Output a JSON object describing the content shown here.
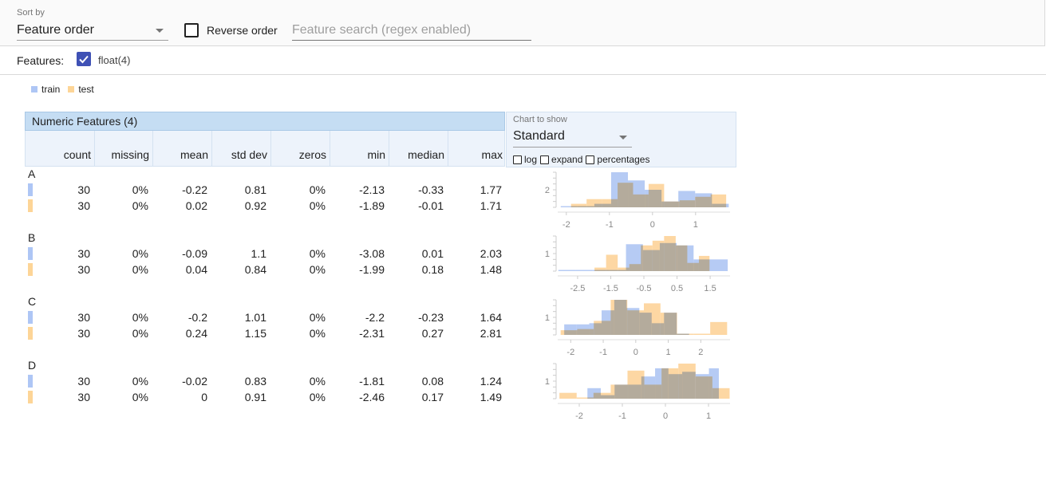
{
  "controls": {
    "sort_label": "Sort by",
    "sort_value": "Feature order",
    "reverse_label": "Reverse order",
    "search_placeholder": "Feature search (regex enabled)"
  },
  "features_filter": {
    "label": "Features:",
    "type": "float(4)",
    "checked": true
  },
  "legend": [
    {
      "name": "train",
      "color": "#aec6f5"
    },
    {
      "name": "test",
      "color": "#fdd597"
    }
  ],
  "colors": {
    "train": "#aec6f5",
    "test": "#fdd597",
    "overlap": "#b5a98a"
  },
  "table": {
    "title": "Numeric Features (4)",
    "columns": [
      "count",
      "missing",
      "mean",
      "std dev",
      "zeros",
      "min",
      "median",
      "max"
    ]
  },
  "chart_panel": {
    "label": "Chart to show",
    "value": "Standard",
    "options": [
      "log",
      "expand",
      "percentages"
    ]
  },
  "features": [
    {
      "name": "A",
      "rows": [
        [
          "30",
          "0%",
          "-0.22",
          "0.81",
          "0%",
          "-2.13",
          "-0.33",
          "1.77"
        ],
        [
          "30",
          "0%",
          "0.02",
          "0.92",
          "0%",
          "-1.89",
          "-0.01",
          "1.71"
        ]
      ],
      "chart_data": {
        "type": "histogram",
        "y_tick_label": "2",
        "x_ticks": [
          -2,
          -1,
          0,
          1
        ],
        "x_range": [
          -2.2,
          1.8
        ],
        "y_max": 3,
        "train_bins": [
          {
            "x0": -2.13,
            "x1": -1.74,
            "y": 0.1
          },
          {
            "x0": -1.74,
            "x1": -1.35,
            "y": 0.1
          },
          {
            "x0": -1.35,
            "x1": -0.96,
            "y": 0.3
          },
          {
            "x0": -0.96,
            "x1": -0.57,
            "y": 3
          },
          {
            "x0": -0.57,
            "x1": -0.18,
            "y": 2.3
          },
          {
            "x0": -0.18,
            "x1": 0.21,
            "y": 1.5
          },
          {
            "x0": 0.21,
            "x1": 0.6,
            "y": 0.5
          },
          {
            "x0": 0.6,
            "x1": 0.99,
            "y": 1.4
          },
          {
            "x0": 0.99,
            "x1": 1.38,
            "y": 1.2
          },
          {
            "x0": 1.38,
            "x1": 1.77,
            "y": 0.3
          }
        ],
        "test_bins": [
          {
            "x0": -1.89,
            "x1": -1.53,
            "y": 0.3
          },
          {
            "x0": -1.53,
            "x1": -1.17,
            "y": 0.7
          },
          {
            "x0": -1.17,
            "x1": -0.81,
            "y": 0.7
          },
          {
            "x0": -0.81,
            "x1": -0.45,
            "y": 2.1
          },
          {
            "x0": -0.45,
            "x1": -0.09,
            "y": 1.1
          },
          {
            "x0": -0.09,
            "x1": 0.27,
            "y": 2.0
          },
          {
            "x0": 0.27,
            "x1": 0.63,
            "y": 0.5
          },
          {
            "x0": 0.63,
            "x1": 0.99,
            "y": 0.6
          },
          {
            "x0": 0.99,
            "x1": 1.35,
            "y": 0.9
          },
          {
            "x0": 1.35,
            "x1": 1.71,
            "y": 1.1
          }
        ]
      }
    },
    {
      "name": "B",
      "rows": [
        [
          "30",
          "0%",
          "-0.09",
          "1.1",
          "0%",
          "-3.08",
          "0.01",
          "2.03"
        ],
        [
          "30",
          "0%",
          "0.04",
          "0.84",
          "0%",
          "-1.99",
          "0.18",
          "1.48"
        ]
      ],
      "chart_data": {
        "type": "histogram",
        "y_tick_label": "1",
        "x_ticks": [
          -2.5,
          -1.5,
          -0.5,
          0.5,
          1.5
        ],
        "x_range": [
          -3.1,
          2.1
        ],
        "y_max": 3,
        "train_bins": [
          {
            "x0": -3.08,
            "x1": -2.57,
            "y": 0.1
          },
          {
            "x0": -2.57,
            "x1": -2.06,
            "y": 0.1
          },
          {
            "x0": -2.06,
            "x1": -1.55,
            "y": 0.1
          },
          {
            "x0": -1.55,
            "x1": -1.04,
            "y": 0.1
          },
          {
            "x0": -1.04,
            "x1": -0.53,
            "y": 2.3
          },
          {
            "x0": -0.53,
            "x1": -0.02,
            "y": 1.8
          },
          {
            "x0": -0.02,
            "x1": 0.49,
            "y": 2.4
          },
          {
            "x0": 0.49,
            "x1": 1.0,
            "y": 2.2
          },
          {
            "x0": 1.0,
            "x1": 1.51,
            "y": 1.0
          },
          {
            "x0": 1.51,
            "x1": 2.03,
            "y": 1.0
          }
        ],
        "test_bins": [
          {
            "x0": -1.99,
            "x1": -1.64,
            "y": 0.3
          },
          {
            "x0": -1.64,
            "x1": -1.29,
            "y": 1.4
          },
          {
            "x0": -1.29,
            "x1": -0.94,
            "y": 0.3
          },
          {
            "x0": -0.94,
            "x1": -0.59,
            "y": 0.6
          },
          {
            "x0": -0.59,
            "x1": -0.24,
            "y": 2.2
          },
          {
            "x0": -0.24,
            "x1": 0.11,
            "y": 2.6
          },
          {
            "x0": 0.11,
            "x1": 0.46,
            "y": 3
          },
          {
            "x0": 0.46,
            "x1": 0.81,
            "y": 2.2
          },
          {
            "x0": 0.81,
            "x1": 1.16,
            "y": 0.7
          },
          {
            "x0": 1.16,
            "x1": 1.48,
            "y": 1.3
          }
        ]
      }
    },
    {
      "name": "C",
      "rows": [
        [
          "30",
          "0%",
          "-0.2",
          "1.01",
          "0%",
          "-2.2",
          "-0.23",
          "1.64"
        ],
        [
          "30",
          "0%",
          "0.24",
          "1.15",
          "0%",
          "-2.31",
          "0.27",
          "2.81"
        ]
      ],
      "chart_data": {
        "type": "histogram",
        "y_tick_label": "1",
        "x_ticks": [
          -2,
          -1,
          0,
          1,
          2
        ],
        "x_range": [
          -2.4,
          2.9
        ],
        "y_max": 3,
        "train_bins": [
          {
            "x0": -2.2,
            "x1": -1.82,
            "y": 0.9
          },
          {
            "x0": -1.82,
            "x1": -1.43,
            "y": 0.9
          },
          {
            "x0": -1.43,
            "x1": -1.05,
            "y": 1.0
          },
          {
            "x0": -1.05,
            "x1": -0.66,
            "y": 2.1
          },
          {
            "x0": -0.66,
            "x1": -0.28,
            "y": 3
          },
          {
            "x0": -0.28,
            "x1": 0.11,
            "y": 2.3
          },
          {
            "x0": 0.11,
            "x1": 0.49,
            "y": 1.9
          },
          {
            "x0": 0.49,
            "x1": 0.87,
            "y": 1.0
          },
          {
            "x0": 0.87,
            "x1": 1.26,
            "y": 1.9
          },
          {
            "x0": 1.26,
            "x1": 1.64,
            "y": 0.1
          }
        ],
        "test_bins": [
          {
            "x0": -2.31,
            "x1": -1.8,
            "y": 0.4
          },
          {
            "x0": -1.8,
            "x1": -1.29,
            "y": 0.5
          },
          {
            "x0": -1.29,
            "x1": -0.77,
            "y": 1.2
          },
          {
            "x0": -0.77,
            "x1": -0.26,
            "y": 3
          },
          {
            "x0": -0.26,
            "x1": 0.25,
            "y": 2.1
          },
          {
            "x0": 0.25,
            "x1": 0.76,
            "y": 2.7
          },
          {
            "x0": 0.76,
            "x1": 1.27,
            "y": 1.9
          },
          {
            "x0": 1.27,
            "x1": 1.78,
            "y": 0.1
          },
          {
            "x0": 1.78,
            "x1": 2.29,
            "y": 0.1
          },
          {
            "x0": 2.29,
            "x1": 2.81,
            "y": 1.1
          }
        ]
      }
    },
    {
      "name": "D",
      "rows": [
        [
          "30",
          "0%",
          "-0.02",
          "0.83",
          "0%",
          "-1.81",
          "0.08",
          "1.24"
        ],
        [
          "30",
          "0%",
          "0",
          "0.91",
          "0%",
          "-2.46",
          "0.17",
          "1.49"
        ]
      ],
      "chart_data": {
        "type": "histogram",
        "y_tick_label": "1",
        "x_ticks": [
          -2,
          -1,
          0,
          1
        ],
        "x_range": [
          -2.5,
          1.5
        ],
        "y_max": 3,
        "train_bins": [
          {
            "x0": -1.81,
            "x1": -1.5,
            "y": 0.9
          },
          {
            "x0": -1.5,
            "x1": -1.18,
            "y": 0.3
          },
          {
            "x0": -1.18,
            "x1": -0.87,
            "y": 1.2
          },
          {
            "x0": -0.87,
            "x1": -0.56,
            "y": 1.2
          },
          {
            "x0": -0.56,
            "x1": -0.24,
            "y": 1.9
          },
          {
            "x0": -0.24,
            "x1": 0.07,
            "y": 2.6
          },
          {
            "x0": 0.07,
            "x1": 0.39,
            "y": 2.1
          },
          {
            "x0": 0.39,
            "x1": 0.7,
            "y": 2.3
          },
          {
            "x0": 0.7,
            "x1": 1.01,
            "y": 2.1
          },
          {
            "x0": 1.01,
            "x1": 1.24,
            "y": 2.6
          }
        ],
        "test_bins": [
          {
            "x0": -2.46,
            "x1": -2.06,
            "y": 0.5
          },
          {
            "x0": -2.06,
            "x1": -1.67,
            "y": 0.1
          },
          {
            "x0": -1.67,
            "x1": -1.27,
            "y": 0.5
          },
          {
            "x0": -1.27,
            "x1": -0.88,
            "y": 1.2
          },
          {
            "x0": -0.88,
            "x1": -0.49,
            "y": 2.4
          },
          {
            "x0": -0.49,
            "x1": -0.09,
            "y": 1.2
          },
          {
            "x0": -0.09,
            "x1": 0.3,
            "y": 2.6
          },
          {
            "x0": 0.3,
            "x1": 0.7,
            "y": 3
          },
          {
            "x0": 0.7,
            "x1": 1.09,
            "y": 1.9
          },
          {
            "x0": 1.09,
            "x1": 1.49,
            "y": 0.9
          }
        ]
      }
    }
  ]
}
